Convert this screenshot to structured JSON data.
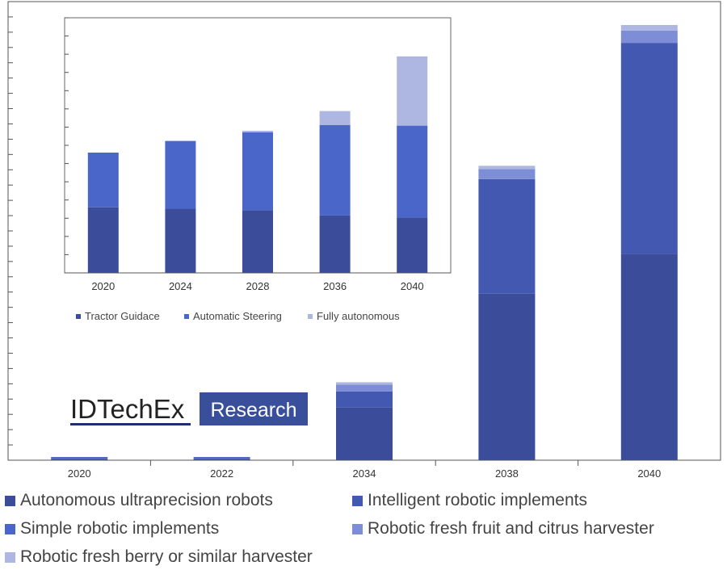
{
  "logo": {
    "brand": "IDTechEx",
    "tag": "Research",
    "tag_bg": "#3a4f9c",
    "underline": "#1f2e6e"
  },
  "chart_data": [
    {
      "type": "bar",
      "stacked": true,
      "title": "",
      "xlabel": "",
      "ylabel": "",
      "categories": [
        "2020",
        "2022",
        "2034",
        "2038",
        "2040"
      ],
      "ylim": [
        0,
        100
      ],
      "grid": false,
      "legend_position": "bottom",
      "series": [
        {
          "name": "Autonomous ultraprecision robots",
          "color": "#3b4c9a",
          "values": [
            0.2,
            0.2,
            11.5,
            36.3,
            45
          ]
        },
        {
          "name": "Intelligent robotic implements",
          "color": "#4358b0",
          "values": [
            0.3,
            0.3,
            3.5,
            25,
            46
          ]
        },
        {
          "name": "Simple robotic implements",
          "color": "#4a66c8",
          "values": [
            0.2,
            0.2,
            0,
            0,
            0
          ]
        },
        {
          "name": "Robotic fresh fruit and citrus harvester",
          "color": "#7d8ed6",
          "values": [
            0,
            0,
            1.5,
            2.2,
            2.7
          ]
        },
        {
          "name": "Robotic fresh berry or similar harvester",
          "color": "#aeb7e2",
          "values": [
            0,
            0,
            0.5,
            0.7,
            1.2
          ]
        }
      ]
    },
    {
      "type": "bar",
      "stacked": true,
      "title": "",
      "xlabel": "",
      "ylabel": "",
      "categories": [
        "2020",
        "2024",
        "2028",
        "2036",
        "2040"
      ],
      "ylim": [
        0,
        35
      ],
      "grid": false,
      "legend_position": "bottom",
      "series": [
        {
          "name": "Tractor Guidace",
          "color": "#3b4c9a",
          "values": [
            9,
            8.8,
            8.6,
            7.9,
            7.6
          ]
        },
        {
          "name": "Automatic Steering",
          "color": "#4a66c8",
          "values": [
            7.5,
            9.3,
            10.7,
            12.4,
            12.6
          ]
        },
        {
          "name": "Fully autonomous",
          "color": "#aeb7e2",
          "values": [
            0,
            0,
            0.2,
            1.9,
            9.5
          ]
        }
      ]
    }
  ]
}
